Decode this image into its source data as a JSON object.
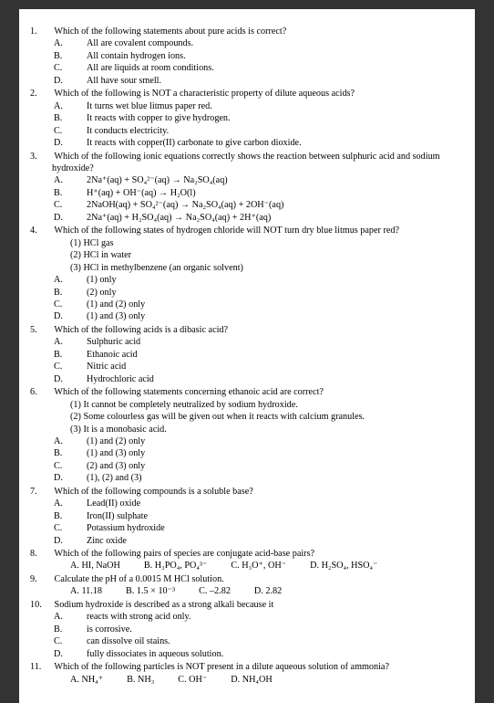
{
  "questions": [
    {
      "num": "1.",
      "text": "Which of the following statements about pure acids is correct?",
      "opts": [
        {
          "l": "A.",
          "t": "All are covalent compounds."
        },
        {
          "l": "B.",
          "t": "All contain hydrogen ions."
        },
        {
          "l": "C.",
          "t": "All are liquids at room conditions."
        },
        {
          "l": "D.",
          "t": "All have sour smell."
        }
      ]
    },
    {
      "num": "2.",
      "text": "Which of the following is NOT a characteristic property of dilute aqueous acids?",
      "opts": [
        {
          "l": "A.",
          "t": "It turns wet blue litmus paper red."
        },
        {
          "l": "B.",
          "t": "It reacts with copper to give hydrogen."
        },
        {
          "l": "C.",
          "t": "It conducts electricity."
        },
        {
          "l": "D.",
          "t": "It reacts with copper(II) carbonate to give carbon dioxide."
        }
      ]
    },
    {
      "num": "3.",
      "text": "Which of the following ionic equations correctly shows the reaction between sulphuric acid and sodium hydroxide?",
      "opts": [
        {
          "l": "A.",
          "t": "2Na⁺(aq) + SO₄²⁻(aq) → Na₂SO₄(aq)"
        },
        {
          "l": "B.",
          "t": "H⁺(aq) + OH⁻(aq) → H₂O(l)"
        },
        {
          "l": "C.",
          "t": "2NaOH(aq) + SO₄²⁻(aq) → Na₂SO₄(aq) + 2OH⁻(aq)"
        },
        {
          "l": "D.",
          "t": "2Na⁺(aq) + H₂SO₄(aq) → Na₂SO₄(aq) + 2H⁺(aq)"
        }
      ]
    },
    {
      "num": "4.",
      "text": "Which of the following states of hydrogen chloride will NOT turn dry blue litmus paper red?",
      "subs": [
        {
          "l": "(1)",
          "t": "HCl gas"
        },
        {
          "l": "(2)",
          "t": "HCl in water"
        },
        {
          "l": "(3)",
          "t": "HCl in methylbenzene (an organic solvent)"
        }
      ],
      "opts": [
        {
          "l": "A.",
          "t": "(1) only"
        },
        {
          "l": "B.",
          "t": "(2) only"
        },
        {
          "l": "C.",
          "t": "(1) and (2) only"
        },
        {
          "l": "D.",
          "t": "(1) and (3) only"
        }
      ]
    },
    {
      "num": "5.",
      "text": "Which of the following acids is a dibasic acid?",
      "opts": [
        {
          "l": "A.",
          "t": "Sulphuric acid"
        },
        {
          "l": "B.",
          "t": "Ethanoic acid"
        },
        {
          "l": "C.",
          "t": "Nitric acid"
        },
        {
          "l": "D.",
          "t": "Hydrochloric acid"
        }
      ]
    },
    {
      "num": "6.",
      "text": "Which of the following statements concerning ethanoic acid are correct?",
      "subs": [
        {
          "l": "(1)",
          "t": "It cannot be completely neutralized by sodium hydroxide."
        },
        {
          "l": "(2)",
          "t": "Some colourless gas will be given out when it reacts with calcium granules."
        },
        {
          "l": "(3)",
          "t": "It is a monobasic acid."
        }
      ],
      "opts": [
        {
          "l": "A.",
          "t": "(1) and (2) only"
        },
        {
          "l": "B.",
          "t": "(1) and (3) only"
        },
        {
          "l": "C.",
          "t": "(2) and (3) only"
        },
        {
          "l": "D.",
          "t": "(1), (2) and (3)"
        }
      ]
    },
    {
      "num": "7.",
      "text": "Which of the following compounds is a soluble base?",
      "opts": [
        {
          "l": "A.",
          "t": "Lead(II) oxide"
        },
        {
          "l": "B.",
          "t": "Iron(II) sulphate"
        },
        {
          "l": "C.",
          "t": "Potassium hydroxide"
        },
        {
          "l": "D.",
          "t": "Zinc oxide"
        }
      ]
    },
    {
      "num": "8.",
      "text": "Which of the following pairs of species are conjugate acid-base pairs?",
      "inline": [
        {
          "l": "A.",
          "t": "HI, NaOH"
        },
        {
          "l": "B.",
          "t": "H₃PO₄, PO₄³⁻"
        },
        {
          "l": "C.",
          "t": "H₃O⁺, OH⁻"
        },
        {
          "l": "D.",
          "t": "H₂SO₄, HSO₄⁻"
        }
      ]
    },
    {
      "num": "9.",
      "text": "Calculate the pH of a 0.0015 M HCl solution.",
      "inline": [
        {
          "l": "A.",
          "t": "11.18"
        },
        {
          "l": "B.",
          "t": "1.5 × 10⁻³"
        },
        {
          "l": "C.",
          "t": "–2.82"
        },
        {
          "l": "D.",
          "t": "2.82"
        }
      ]
    },
    {
      "num": "10.",
      "text": "Sodium hydroxide is described as a strong alkali because it",
      "opts": [
        {
          "l": "A.",
          "t": "reacts with strong acid only."
        },
        {
          "l": "B.",
          "t": "is corrosive."
        },
        {
          "l": "C.",
          "t": "can dissolve oil stains."
        },
        {
          "l": "D.",
          "t": "fully dissociates in aqueous solution."
        }
      ]
    },
    {
      "num": "11.",
      "text": "Which of the following particles is NOT present in a dilute aqueous solution of ammonia?",
      "inline": [
        {
          "l": "A.",
          "t": "NH₄⁺"
        },
        {
          "l": "B.",
          "t": "NH₃"
        },
        {
          "l": "C.",
          "t": "OH⁻"
        },
        {
          "l": "D.",
          "t": "NH₄OH"
        }
      ]
    }
  ],
  "style": {
    "page_bg": "#ffffff",
    "body_bg": "#333333",
    "text_color": "#000000",
    "font_family": "Times New Roman",
    "font_size_pt": 10.2
  }
}
